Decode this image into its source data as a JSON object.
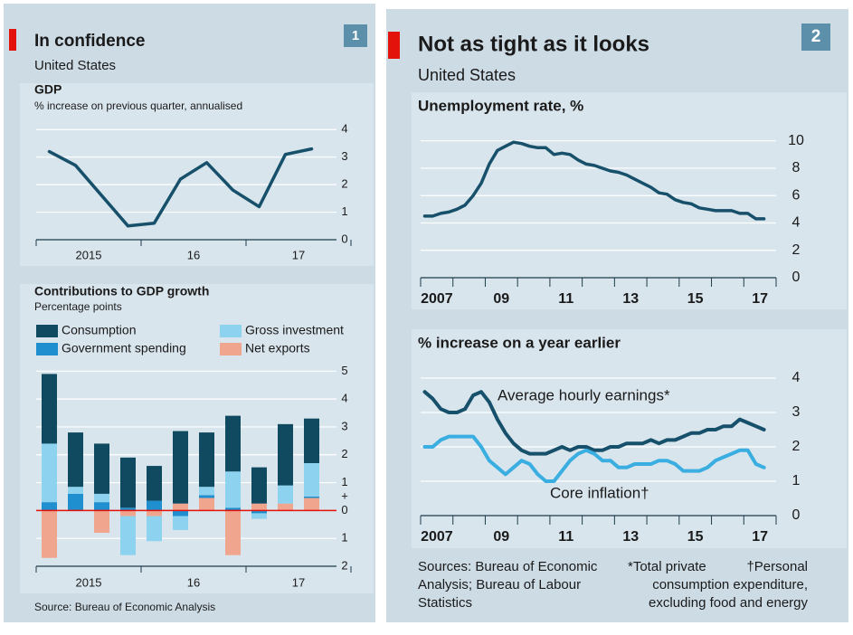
{
  "panels": [
    {
      "title": "In confidence",
      "subtitle": "United States",
      "number": "1",
      "source": "Source: Bureau of Economic Analysis"
    },
    {
      "title": "Not as tight as it looks",
      "subtitle": "United States",
      "number": "2",
      "source": "Sources: Bureau of Economic Analysis; Bureau of Labour Statistics",
      "footnotes": [
        "*Total private",
        "†Personal consumption expenditure, excluding food and energy"
      ]
    }
  ],
  "chart_data": [
    {
      "type": "line",
      "title": "GDP",
      "subtitle": "% increase on previous quarter, annualised",
      "x": [
        2015.125,
        2015.375,
        2015.625,
        2015.875,
        2016.125,
        2016.375,
        2016.625,
        2016.875,
        2017.125,
        2017.375,
        2017.625
      ],
      "values": [
        3.2,
        2.7,
        1.6,
        0.5,
        0.6,
        2.2,
        2.8,
        1.8,
        1.2,
        3.1,
        3.3
      ],
      "color": "#17506a",
      "xlim": [
        2015,
        2018
      ],
      "xticks": [
        {
          "value": 2015.5,
          "label": "2015"
        },
        {
          "value": 2016.5,
          "label": "16"
        },
        {
          "value": 2017.5,
          "label": "17"
        }
      ],
      "xtick_marks": [
        2015,
        2016,
        2017,
        2018
      ],
      "ylim": [
        0,
        4.6
      ],
      "yticks": [
        0,
        1,
        2,
        3,
        4
      ],
      "grid": true
    },
    {
      "type": "stacked_bar",
      "title": "Contributions to GDP growth",
      "subtitle": "Percentage points",
      "x": [
        2015.125,
        2015.375,
        2015.625,
        2015.875,
        2016.125,
        2016.375,
        2016.625,
        2016.875,
        2017.125,
        2017.375,
        2017.625
      ],
      "series": [
        {
          "name": "Consumption",
          "color": "#0f4a60",
          "values": [
            2.5,
            1.95,
            1.8,
            1.8,
            1.25,
            2.6,
            1.95,
            2.0,
            1.3,
            2.2,
            1.6
          ]
        },
        {
          "name": "Government spending",
          "color": "#1f8fcf",
          "values": [
            0.3,
            0.6,
            0.3,
            0.1,
            0.35,
            -0.2,
            0.1,
            0.1,
            -0.1,
            0,
            0.05
          ]
        },
        {
          "name": "Gross investment",
          "color": "#8dd2ef",
          "values": [
            2.1,
            0.25,
            0.3,
            -1.4,
            -0.9,
            -0.5,
            0.3,
            1.3,
            -0.2,
            0.65,
            1.2
          ]
        },
        {
          "name": "Net exports",
          "color": "#f0a58e",
          "values": [
            -1.7,
            0,
            -0.8,
            -0.2,
            -0.2,
            0.25,
            0.45,
            -1.6,
            0.25,
            0.25,
            0.45
          ]
        }
      ],
      "xlim": [
        2015,
        2018
      ],
      "xticks": [
        {
          "value": 2015.5,
          "label": "2015"
        },
        {
          "value": 2016.5,
          "label": "16"
        },
        {
          "value": 2017.5,
          "label": "17"
        }
      ],
      "xtick_marks": [
        2015,
        2016,
        2017,
        2018
      ],
      "ylim": [
        -2,
        5.4
      ],
      "yticks": [
        {
          "value": -2,
          "label": "2"
        },
        {
          "value": -1,
          "label": "1"
        },
        0,
        1,
        2,
        3,
        4,
        5
      ],
      "annotations": [
        {
          "text": "+",
          "y": 0.5
        }
      ],
      "zero_line_color": "#e3120b",
      "grid": true
    },
    {
      "type": "line",
      "title": "Unemployment rate, %",
      "x": [
        2007.125,
        2007.375,
        2007.625,
        2007.875,
        2008.125,
        2008.375,
        2008.625,
        2008.875,
        2009.125,
        2009.375,
        2009.625,
        2009.875,
        2010.125,
        2010.375,
        2010.625,
        2010.875,
        2011.125,
        2011.375,
        2011.625,
        2011.875,
        2012.125,
        2012.375,
        2012.625,
        2012.875,
        2013.125,
        2013.375,
        2013.625,
        2013.875,
        2014.125,
        2014.375,
        2014.625,
        2014.875,
        2015.125,
        2015.375,
        2015.625,
        2015.875,
        2016.125,
        2016.375,
        2016.625,
        2016.875,
        2017.125,
        2017.375,
        2017.625
      ],
      "values": [
        4.5,
        4.5,
        4.7,
        4.8,
        5.0,
        5.3,
        6.0,
        6.9,
        8.3,
        9.3,
        9.6,
        9.9,
        9.8,
        9.6,
        9.5,
        9.5,
        9.0,
        9.1,
        9.0,
        8.6,
        8.3,
        8.2,
        8.0,
        7.8,
        7.7,
        7.5,
        7.2,
        6.9,
        6.6,
        6.2,
        6.1,
        5.7,
        5.5,
        5.4,
        5.1,
        5.0,
        4.9,
        4.9,
        4.9,
        4.7,
        4.7,
        4.3,
        4.3
      ],
      "color": "#17506a",
      "xlim": [
        2007,
        2018
      ],
      "xticks": [
        {
          "value": 2007.5,
          "label": "2007"
        },
        {
          "value": 2009.5,
          "label": "09"
        },
        {
          "value": 2011.5,
          "label": "11"
        },
        {
          "value": 2013.5,
          "label": "13"
        },
        {
          "value": 2015.5,
          "label": "15"
        },
        {
          "value": 2017.5,
          "label": "17"
        }
      ],
      "xtick_marks": [
        2007,
        2008,
        2009,
        2010,
        2011,
        2012,
        2013,
        2014,
        2015,
        2016,
        2017,
        2018
      ],
      "ylim": [
        0,
        11.5
      ],
      "yticks": [
        0,
        2,
        4,
        6,
        8,
        10
      ],
      "grid": true
    },
    {
      "type": "line",
      "title": "% increase on a year earlier",
      "x": [
        2007.125,
        2007.375,
        2007.625,
        2007.875,
        2008.125,
        2008.375,
        2008.625,
        2008.875,
        2009.125,
        2009.375,
        2009.625,
        2009.875,
        2010.125,
        2010.375,
        2010.625,
        2010.875,
        2011.125,
        2011.375,
        2011.625,
        2011.875,
        2012.125,
        2012.375,
        2012.625,
        2012.875,
        2013.125,
        2013.375,
        2013.625,
        2013.875,
        2014.125,
        2014.375,
        2014.625,
        2014.875,
        2015.125,
        2015.375,
        2015.625,
        2015.875,
        2016.125,
        2016.375,
        2016.625,
        2016.875,
        2017.125,
        2017.375,
        2017.625
      ],
      "series": [
        {
          "name": "Average hourly earnings*",
          "color": "#17506a",
          "values": [
            3.6,
            3.4,
            3.1,
            3.0,
            3.0,
            3.1,
            3.5,
            3.6,
            3.3,
            2.8,
            2.4,
            2.1,
            1.9,
            1.8,
            1.8,
            1.8,
            1.9,
            2.0,
            1.9,
            2.0,
            2.0,
            1.9,
            1.9,
            2.0,
            2.0,
            2.1,
            2.1,
            2.1,
            2.2,
            2.1,
            2.2,
            2.2,
            2.3,
            2.4,
            2.4,
            2.5,
            2.5,
            2.6,
            2.6,
            2.8,
            2.7,
            2.6,
            2.5
          ]
        },
        {
          "name": "Core inflation†",
          "color": "#3aaee0",
          "values": [
            2.0,
            2.0,
            2.2,
            2.3,
            2.3,
            2.3,
            2.3,
            2.0,
            1.6,
            1.4,
            1.2,
            1.4,
            1.6,
            1.5,
            1.2,
            1.0,
            1.0,
            1.3,
            1.6,
            1.8,
            1.9,
            1.8,
            1.6,
            1.6,
            1.4,
            1.4,
            1.5,
            1.5,
            1.5,
            1.6,
            1.6,
            1.5,
            1.3,
            1.3,
            1.3,
            1.4,
            1.6,
            1.7,
            1.8,
            1.9,
            1.9,
            1.5,
            1.4
          ]
        }
      ],
      "xlim": [
        2007,
        2018
      ],
      "xticks": [
        {
          "value": 2007.5,
          "label": "2007"
        },
        {
          "value": 2009.5,
          "label": "09"
        },
        {
          "value": 2011.5,
          "label": "11"
        },
        {
          "value": 2013.5,
          "label": "13"
        },
        {
          "value": 2015.5,
          "label": "15"
        },
        {
          "value": 2017.5,
          "label": "17"
        }
      ],
      "xtick_marks": [
        2007,
        2008,
        2009,
        2010,
        2011,
        2012,
        2013,
        2014,
        2015,
        2016,
        2017,
        2018
      ],
      "ylim": [
        0,
        4.5
      ],
      "yticks": [
        0,
        1,
        2,
        3,
        4
      ],
      "grid": true
    }
  ]
}
